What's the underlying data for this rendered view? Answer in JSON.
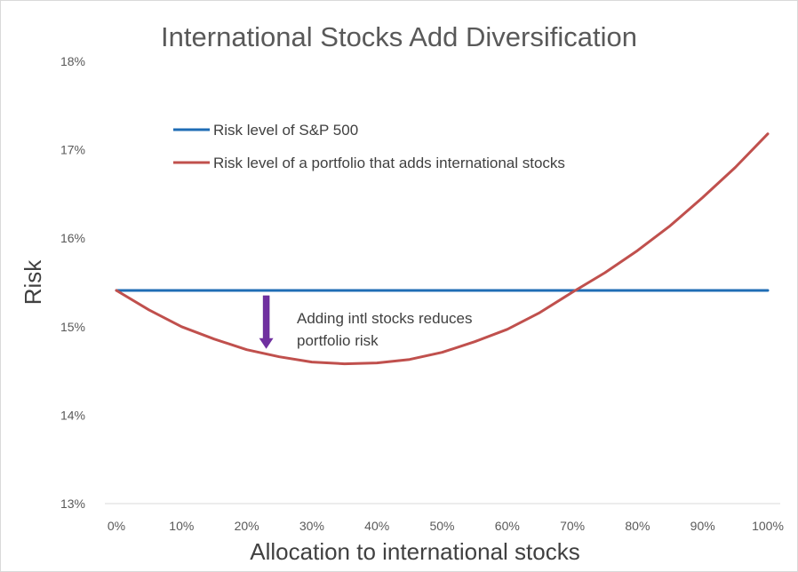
{
  "chart_data": {
    "type": "line",
    "title": "International Stocks Add Diversification",
    "xlabel": "Allocation to international stocks",
    "ylabel": "Risk",
    "x": [
      0,
      5,
      10,
      15,
      20,
      25,
      30,
      35,
      40,
      45,
      50,
      55,
      60,
      65,
      70,
      75,
      80,
      85,
      90,
      95,
      100
    ],
    "x_tick_values": [
      0,
      10,
      20,
      30,
      40,
      50,
      60,
      70,
      80,
      90,
      100
    ],
    "x_tick_labels": [
      "0%",
      "10%",
      "20%",
      "30%",
      "40%",
      "50%",
      "60%",
      "70%",
      "80%",
      "90%",
      "100%"
    ],
    "y_tick_values": [
      13,
      14,
      15,
      16,
      17,
      18
    ],
    "y_tick_labels": [
      "13%",
      "14%",
      "15%",
      "16%",
      "17%",
      "18%"
    ],
    "xlim": [
      0,
      100
    ],
    "ylim": [
      13,
      18
    ],
    "grid": false,
    "legend_position": "top-left",
    "series": [
      {
        "name": "Risk level of S&P 500",
        "color": "#1f6db5",
        "values": [
          15.41,
          15.41,
          15.41,
          15.41,
          15.41,
          15.41,
          15.41,
          15.41,
          15.41,
          15.41,
          15.41,
          15.41,
          15.41,
          15.41,
          15.41,
          15.41,
          15.41,
          15.41,
          15.41,
          15.41,
          15.41
        ]
      },
      {
        "name": "Risk level of a portfolio that adds international stocks",
        "color": "#c0504d",
        "values": [
          15.41,
          15.19,
          15.0,
          14.86,
          14.74,
          14.66,
          14.6,
          14.58,
          14.59,
          14.63,
          14.71,
          14.83,
          14.97,
          15.16,
          15.39,
          15.61,
          15.86,
          16.14,
          16.46,
          16.8,
          17.18
        ]
      }
    ],
    "annotation": {
      "lines": [
        "Adding intl stocks reduces",
        "portfolio risk"
      ],
      "arrow_color": "#7030a0",
      "arrow_x": 23,
      "arrow_from": 15.35,
      "arrow_to": 14.75
    }
  }
}
